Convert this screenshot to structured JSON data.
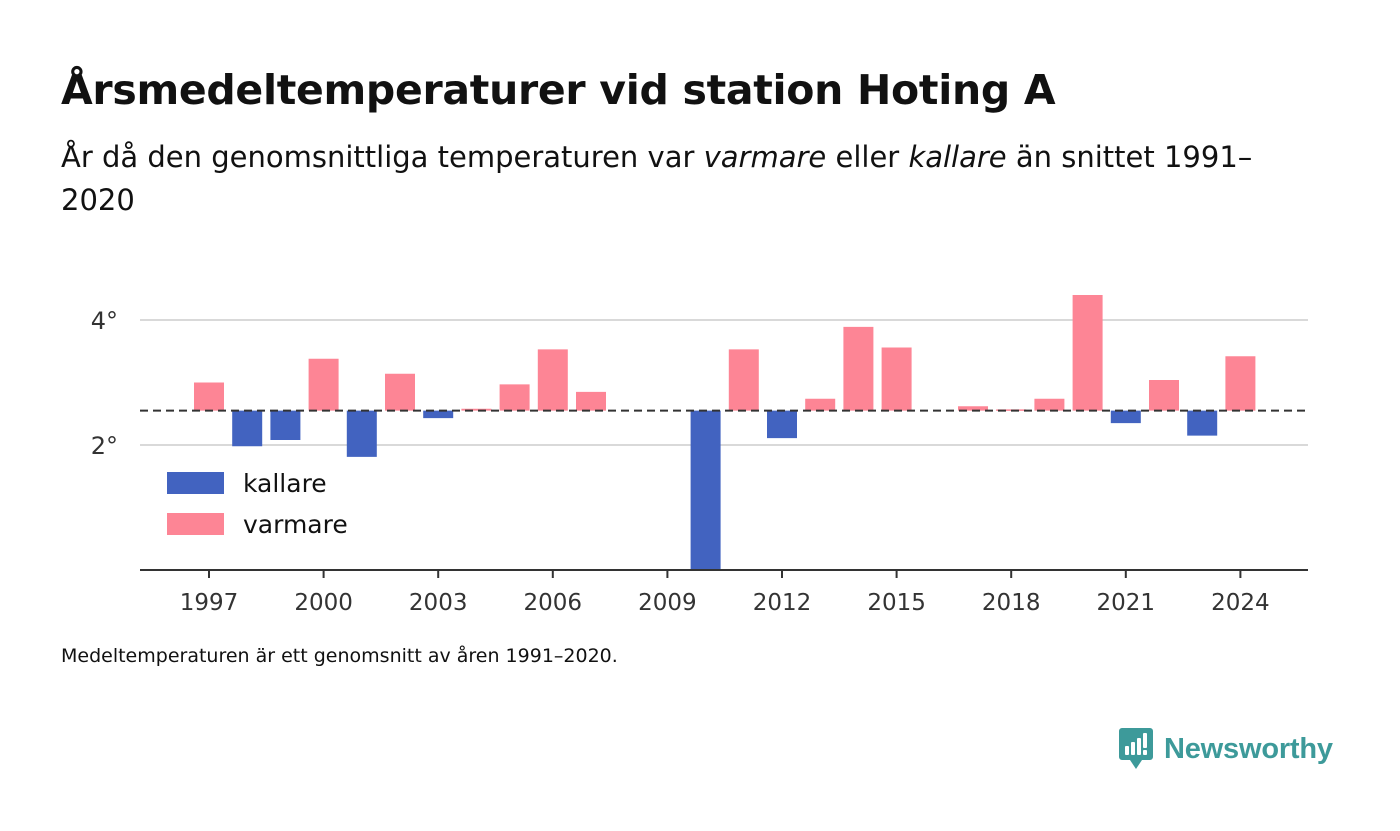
{
  "header": {
    "title": "Årsmedeltemperaturer vid station Hoting A",
    "subtitle_pre": "År då den genomsnittliga temperaturen var ",
    "subtitle_warm": "varmare",
    "subtitle_mid": " eller ",
    "subtitle_cold": "kallare",
    "subtitle_post": " än snittet 1991–2020"
  },
  "footnote": "Medeltemperaturen är ett genomsnitt av åren 1991–2020.",
  "brand": {
    "name": "Newsworthy",
    "color": "#3d9a9a"
  },
  "chart_data": {
    "type": "bar",
    "baseline": 2.55,
    "ylim": [
      0,
      4.4
    ],
    "ylabels": [
      "4°",
      "2°"
    ],
    "yticks": [
      4,
      2
    ],
    "grid": true,
    "xticks": [
      "1997",
      "2000",
      "2003",
      "2006",
      "2009",
      "2012",
      "2015",
      "2018",
      "2021",
      "2024"
    ],
    "colors": {
      "cold": "#4263c0",
      "warm": "#fd8595"
    },
    "legend": {
      "placement": "left",
      "items": [
        {
          "key": "cold",
          "label": "kallare"
        },
        {
          "key": "warm",
          "label": "varmare"
        }
      ]
    },
    "years": [
      1997,
      1998,
      1999,
      2000,
      2001,
      2002,
      2003,
      2004,
      2005,
      2006,
      2007,
      2010,
      2011,
      2012,
      2013,
      2014,
      2015,
      2017,
      2018,
      2019,
      2020,
      2021,
      2022,
      2023,
      2024
    ],
    "values": [
      3.0,
      1.98,
      2.08,
      3.38,
      1.81,
      3.14,
      2.43,
      2.58,
      2.97,
      3.53,
      2.85,
      0.0,
      3.53,
      2.11,
      2.74,
      3.89,
      3.56,
      2.62,
      2.57,
      2.74,
      4.4,
      2.35,
      3.04,
      2.15,
      3.42
    ]
  }
}
